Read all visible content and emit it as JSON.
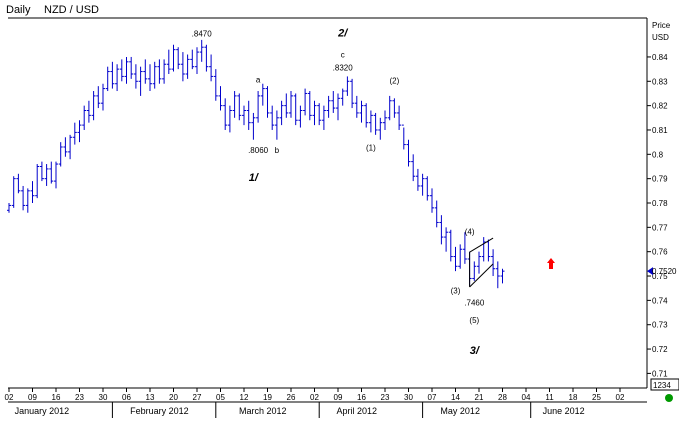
{
  "header": {
    "period": "Daily",
    "symbol": "NZD / USD"
  },
  "price_axis": {
    "title_line1": "Price",
    "title_line2": "USD",
    "current_label": "0.7520",
    "volume_label": "1234"
  },
  "colors": {
    "bars": "#0000cc",
    "axis": "#000000",
    "marker": "#ff0000",
    "status": "#009900"
  },
  "status_icon": "green-circle-icon",
  "chart_data": {
    "type": "ohlc",
    "title": "Daily NZD / USD",
    "ylim": [
      0.704,
      0.856
    ],
    "y_ticks": [
      0.71,
      0.72,
      0.73,
      0.74,
      0.75,
      0.76,
      0.77,
      0.78,
      0.79,
      0.8,
      0.81,
      0.82,
      0.83,
      0.84
    ],
    "y_tick_labels": [
      "0.71",
      "0.72",
      "0.73",
      "0.74",
      "0.75",
      "0.76",
      "0.77",
      "0.78",
      "0.79",
      "0.8",
      "0.81",
      "0.82",
      "0.83",
      "0.84"
    ],
    "x_ticks": [
      {
        "i": 0,
        "label": "02"
      },
      {
        "i": 5,
        "label": "09"
      },
      {
        "i": 10,
        "label": "16"
      },
      {
        "i": 15,
        "label": "23"
      },
      {
        "i": 20,
        "label": "30"
      },
      {
        "i": 25,
        "label": "06"
      },
      {
        "i": 30,
        "label": "13"
      },
      {
        "i": 35,
        "label": "20"
      },
      {
        "i": 40,
        "label": "27"
      },
      {
        "i": 45,
        "label": "05"
      },
      {
        "i": 50,
        "label": "12"
      },
      {
        "i": 55,
        "label": "19"
      },
      {
        "i": 60,
        "label": "26"
      },
      {
        "i": 65,
        "label": "02"
      },
      {
        "i": 70,
        "label": "09"
      },
      {
        "i": 75,
        "label": "16"
      },
      {
        "i": 80,
        "label": "23"
      },
      {
        "i": 85,
        "label": "30"
      },
      {
        "i": 90,
        "label": "07"
      },
      {
        "i": 95,
        "label": "14"
      },
      {
        "i": 100,
        "label": "21"
      },
      {
        "i": 105,
        "label": "28"
      },
      {
        "i": 110,
        "label": "04"
      },
      {
        "i": 115,
        "label": "11"
      },
      {
        "i": 120,
        "label": "18"
      },
      {
        "i": 125,
        "label": "25"
      },
      {
        "i": 130,
        "label": "02"
      }
    ],
    "months": [
      {
        "i": 7,
        "label": "January 2012"
      },
      {
        "i": 32,
        "label": "February 2012"
      },
      {
        "i": 54,
        "label": "March 2012"
      },
      {
        "i": 74,
        "label": "April 2012"
      },
      {
        "i": 96,
        "label": "May 2012"
      },
      {
        "i": 118,
        "label": "June 2012"
      }
    ],
    "month_separators": [
      22,
      44,
      66,
      88,
      111
    ],
    "ohlc": [
      [
        0.777,
        0.78,
        0.776,
        0.779
      ],
      [
        0.779,
        0.791,
        0.778,
        0.79
      ],
      [
        0.79,
        0.792,
        0.784,
        0.785
      ],
      [
        0.785,
        0.787,
        0.777,
        0.779
      ],
      [
        0.779,
        0.786,
        0.776,
        0.785
      ],
      [
        0.785,
        0.789,
        0.78,
        0.783
      ],
      [
        0.783,
        0.796,
        0.782,
        0.795
      ],
      [
        0.795,
        0.797,
        0.789,
        0.79
      ],
      [
        0.79,
        0.796,
        0.787,
        0.794
      ],
      [
        0.794,
        0.797,
        0.788,
        0.789
      ],
      [
        0.789,
        0.797,
        0.786,
        0.796
      ],
      [
        0.796,
        0.805,
        0.795,
        0.803
      ],
      [
        0.803,
        0.807,
        0.799,
        0.801
      ],
      [
        0.801,
        0.808,
        0.798,
        0.807
      ],
      [
        0.807,
        0.813,
        0.804,
        0.809
      ],
      [
        0.809,
        0.814,
        0.805,
        0.812
      ],
      [
        0.812,
        0.82,
        0.81,
        0.818
      ],
      [
        0.818,
        0.822,
        0.813,
        0.816
      ],
      [
        0.816,
        0.826,
        0.814,
        0.824
      ],
      [
        0.824,
        0.828,
        0.819,
        0.821
      ],
      [
        0.821,
        0.829,
        0.818,
        0.827
      ],
      [
        0.827,
        0.836,
        0.826,
        0.834
      ],
      [
        0.834,
        0.838,
        0.827,
        0.829
      ],
      [
        0.829,
        0.837,
        0.826,
        0.835
      ],
      [
        0.835,
        0.839,
        0.83,
        0.832
      ],
      [
        0.832,
        0.84,
        0.829,
        0.838
      ],
      [
        0.838,
        0.84,
        0.831,
        0.833
      ],
      [
        0.833,
        0.837,
        0.827,
        0.83
      ],
      [
        0.83,
        0.836,
        0.824,
        0.834
      ],
      [
        0.834,
        0.839,
        0.829,
        0.831
      ],
      [
        0.831,
        0.837,
        0.826,
        0.829
      ],
      [
        0.829,
        0.838,
        0.827,
        0.836
      ],
      [
        0.836,
        0.839,
        0.829,
        0.831
      ],
      [
        0.831,
        0.839,
        0.829,
        0.837
      ],
      [
        0.837,
        0.843,
        0.833,
        0.835
      ],
      [
        0.835,
        0.845,
        0.834,
        0.843
      ],
      [
        0.843,
        0.844,
        0.835,
        0.837
      ],
      [
        0.837,
        0.842,
        0.83,
        0.833
      ],
      [
        0.833,
        0.841,
        0.831,
        0.839
      ],
      [
        0.839,
        0.843,
        0.835,
        0.836
      ],
      [
        0.836,
        0.844,
        0.833,
        0.842
      ],
      [
        0.842,
        0.847,
        0.838,
        0.844
      ],
      [
        0.844,
        0.845,
        0.834,
        0.836
      ],
      [
        0.836,
        0.841,
        0.83,
        0.832
      ],
      [
        0.832,
        0.835,
        0.822,
        0.824
      ],
      [
        0.824,
        0.828,
        0.818,
        0.82
      ],
      [
        0.82,
        0.823,
        0.81,
        0.812
      ],
      [
        0.812,
        0.82,
        0.809,
        0.818
      ],
      [
        0.818,
        0.826,
        0.815,
        0.824
      ],
      [
        0.824,
        0.825,
        0.814,
        0.816
      ],
      [
        0.816,
        0.82,
        0.812,
        0.818
      ],
      [
        0.818,
        0.822,
        0.81,
        0.813
      ],
      [
        0.813,
        0.817,
        0.806,
        0.815
      ],
      [
        0.815,
        0.826,
        0.813,
        0.824
      ],
      [
        0.824,
        0.829,
        0.82,
        0.827
      ],
      [
        0.827,
        0.828,
        0.815,
        0.817
      ],
      [
        0.817,
        0.82,
        0.81,
        0.812
      ],
      [
        0.812,
        0.818,
        0.806,
        0.815
      ],
      [
        0.815,
        0.822,
        0.812,
        0.82
      ],
      [
        0.82,
        0.825,
        0.815,
        0.817
      ],
      [
        0.817,
        0.826,
        0.815,
        0.824
      ],
      [
        0.824,
        0.825,
        0.812,
        0.814
      ],
      [
        0.814,
        0.82,
        0.811,
        0.818
      ],
      [
        0.818,
        0.827,
        0.816,
        0.825
      ],
      [
        0.825,
        0.826,
        0.814,
        0.816
      ],
      [
        0.816,
        0.822,
        0.812,
        0.82
      ],
      [
        0.82,
        0.821,
        0.812,
        0.814
      ],
      [
        0.814,
        0.82,
        0.81,
        0.818
      ],
      [
        0.818,
        0.824,
        0.815,
        0.822
      ],
      [
        0.822,
        0.826,
        0.817,
        0.819
      ],
      [
        0.819,
        0.825,
        0.814,
        0.823
      ],
      [
        0.823,
        0.827,
        0.82,
        0.826
      ],
      [
        0.826,
        0.832,
        0.824,
        0.83
      ],
      [
        0.83,
        0.831,
        0.819,
        0.821
      ],
      [
        0.821,
        0.824,
        0.815,
        0.817
      ],
      [
        0.817,
        0.822,
        0.813,
        0.82
      ],
      [
        0.82,
        0.821,
        0.811,
        0.813
      ],
      [
        0.813,
        0.818,
        0.809,
        0.816
      ],
      [
        0.816,
        0.817,
        0.808,
        0.81
      ],
      [
        0.81,
        0.815,
        0.806,
        0.813
      ],
      [
        0.813,
        0.818,
        0.81,
        0.815
      ],
      [
        0.815,
        0.824,
        0.814,
        0.822
      ],
      [
        0.822,
        0.823,
        0.815,
        0.817
      ],
      [
        0.817,
        0.82,
        0.81,
        0.812
      ],
      [
        0.812,
        0.811,
        0.802,
        0.804
      ],
      [
        0.804,
        0.806,
        0.795,
        0.797
      ],
      [
        0.797,
        0.8,
        0.789,
        0.791
      ],
      [
        0.791,
        0.794,
        0.785,
        0.787
      ],
      [
        0.787,
        0.792,
        0.783,
        0.79
      ],
      [
        0.79,
        0.791,
        0.781,
        0.783
      ],
      [
        0.783,
        0.786,
        0.776,
        0.778
      ],
      [
        0.778,
        0.781,
        0.77,
        0.772
      ],
      [
        0.772,
        0.775,
        0.763,
        0.766
      ],
      [
        0.766,
        0.77,
        0.76,
        0.768
      ],
      [
        0.768,
        0.769,
        0.756,
        0.758
      ],
      [
        0.758,
        0.762,
        0.752,
        0.754
      ],
      [
        0.754,
        0.763,
        0.753,
        0.761
      ],
      [
        0.761,
        0.768,
        0.755,
        0.757
      ],
      [
        0.757,
        0.76,
        0.746,
        0.749
      ],
      [
        0.749,
        0.756,
        0.748,
        0.754
      ],
      [
        0.754,
        0.76,
        0.751,
        0.758
      ],
      [
        0.758,
        0.766,
        0.756,
        0.764
      ],
      [
        0.764,
        0.765,
        0.756,
        0.758
      ],
      [
        0.758,
        0.761,
        0.75,
        0.753
      ],
      [
        0.753,
        0.756,
        0.745,
        0.75
      ],
      [
        0.75,
        0.753,
        0.747,
        0.752
      ]
    ],
    "annotations": [
      {
        "i": 41,
        "y": 0.8484,
        "text": ".8470",
        "kind": "price"
      },
      {
        "i": 53,
        "y": 0.8295,
        "text": "a",
        "kind": "price"
      },
      {
        "i": 53,
        "y": 0.8005,
        "text": ".8060",
        "kind": "price"
      },
      {
        "i": 57,
        "y": 0.8005,
        "text": "b",
        "kind": "price"
      },
      {
        "i": 71,
        "y": 0.8398,
        "text": "c",
        "kind": "price"
      },
      {
        "i": 71,
        "y": 0.8344,
        "text": ".8320",
        "kind": "price"
      },
      {
        "i": 82,
        "y": 0.829,
        "text": "(2)",
        "kind": "price"
      },
      {
        "i": 77,
        "y": 0.8015,
        "text": "(1)",
        "kind": "price"
      },
      {
        "i": 98,
        "y": 0.767,
        "text": "(4)",
        "kind": "price"
      },
      {
        "i": 95,
        "y": 0.7428,
        "text": "(3)",
        "kind": "price"
      },
      {
        "i": 99,
        "y": 0.7378,
        "text": ".7460",
        "kind": "price"
      },
      {
        "i": 99,
        "y": 0.7308,
        "text": "(5)",
        "kind": "price"
      },
      {
        "i": 52,
        "y": 0.789,
        "text": "1/",
        "kind": "wave"
      },
      {
        "i": 71,
        "y": 0.8485,
        "text": "2/",
        "kind": "wave"
      },
      {
        "i": 99,
        "y": 0.718,
        "text": "3/",
        "kind": "wave"
      }
    ],
    "wedge": {
      "from_i": 98,
      "to_i": 103,
      "upper": [
        0.7598,
        0.7656
      ],
      "lower": [
        0.7455,
        0.755
      ]
    }
  }
}
